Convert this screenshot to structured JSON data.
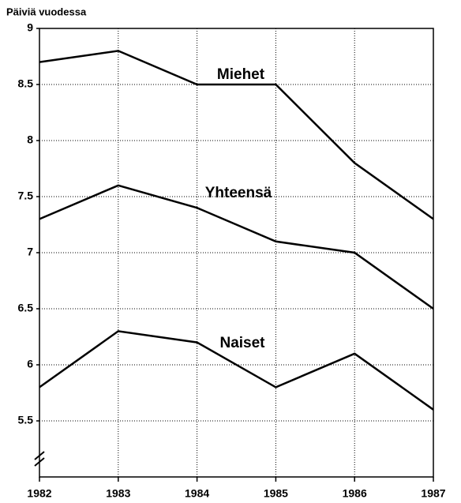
{
  "chart_data": {
    "type": "line",
    "y_axis_label": "Päiviä vuodessa",
    "x": [
      1982,
      1983,
      1984,
      1985,
      1986,
      1987
    ],
    "xlim": [
      1982,
      1987
    ],
    "xticks": [
      1982,
      1983,
      1984,
      1985,
      1986,
      1987
    ],
    "ylim": [
      5,
      9
    ],
    "yticks": [
      5.5,
      6,
      6.5,
      7,
      7.5,
      8,
      8.5,
      9
    ],
    "grid": true,
    "series": [
      {
        "name": "Miehet",
        "color": "#000000",
        "values": [
          8.7,
          8.8,
          8.5,
          8.5,
          7.8,
          7.3
        ]
      },
      {
        "name": "Yhteensä",
        "color": "#000000",
        "values": [
          7.3,
          7.6,
          7.4,
          7.1,
          7.0,
          6.5
        ]
      },
      {
        "name": "Naiset",
        "color": "#000000",
        "values": [
          5.8,
          6.3,
          6.2,
          5.8,
          6.1,
          5.6
        ]
      }
    ]
  }
}
